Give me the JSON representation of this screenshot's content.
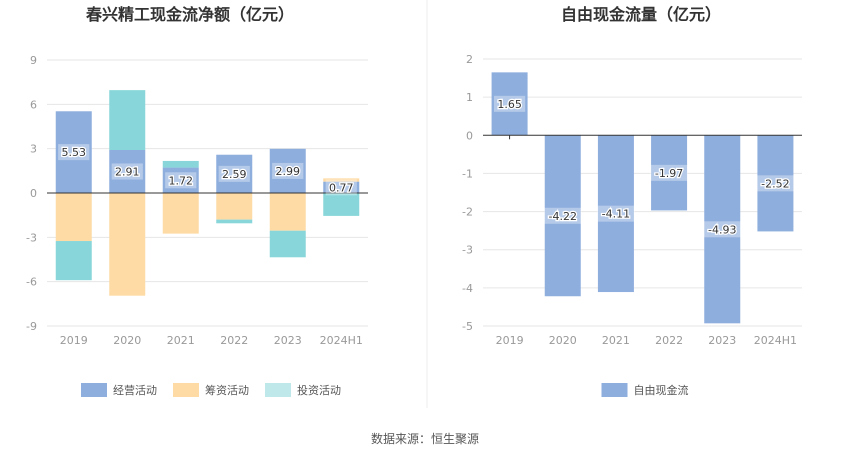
{
  "chart_data": [
    {
      "type": "bar",
      "stacked": true,
      "title": "春兴精工现金流净额（亿元）",
      "categories": [
        "2019",
        "2020",
        "2021",
        "2022",
        "2023",
        "2024H1"
      ],
      "ylim": [
        -9,
        9
      ],
      "yticks": [
        9,
        6,
        3,
        0,
        -3,
        -6,
        -9
      ],
      "grid": true,
      "legend_position": "bottom",
      "series": [
        {
          "name": "经营活动",
          "color": "#8eaedd",
          "values": [
            5.53,
            2.91,
            1.72,
            2.59,
            2.99,
            0.77
          ]
        },
        {
          "name": "筹资活动",
          "color": "#fedba5",
          "values": [
            -3.25,
            -6.95,
            -2.75,
            -1.8,
            -2.55,
            0.22
          ]
        },
        {
          "name": "投资活动",
          "color": "#88d6da",
          "values": [
            -2.65,
            4.05,
            0.45,
            -0.25,
            -1.8,
            -1.55
          ]
        }
      ],
      "data_labels": [
        "5.53",
        "2.91",
        "1.72",
        "2.59",
        "2.99",
        "0.77"
      ]
    },
    {
      "type": "bar",
      "title": "自由现金流量（亿元）",
      "categories": [
        "2019",
        "2020",
        "2021",
        "2022",
        "2023",
        "2024H1"
      ],
      "ylim": [
        -5,
        2
      ],
      "yticks": [
        2,
        1,
        0,
        -1,
        -2,
        -3,
        -4,
        -5
      ],
      "grid": true,
      "legend_position": "bottom",
      "series": [
        {
          "name": "自由现金流",
          "color": "#8eaedd",
          "values": [
            1.65,
            -4.22,
            -4.11,
            -1.97,
            -4.93,
            -2.52
          ]
        }
      ],
      "data_labels": [
        "1.65",
        "-4.22",
        "-4.11",
        "-1.97",
        "-4.93",
        "-2.52"
      ]
    }
  ],
  "footer": {
    "source": "数据来源：恒生聚源"
  },
  "colors": {
    "grid": "#e6e6e6",
    "axis": "#333333",
    "divider": "#eeeeee"
  }
}
